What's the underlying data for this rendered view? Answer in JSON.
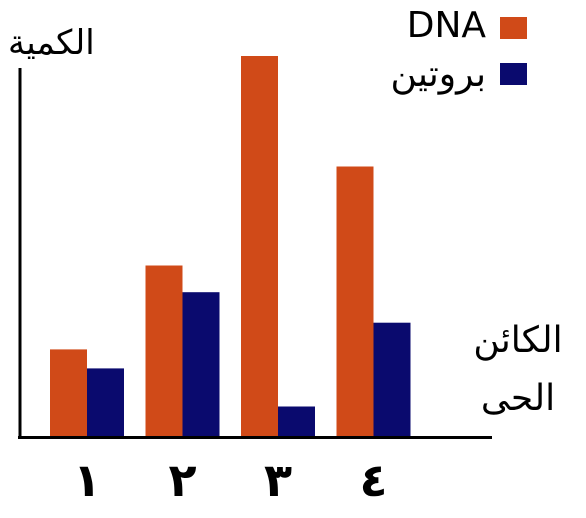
{
  "chart_data": {
    "type": "bar",
    "title": "",
    "ylabel": "الكمية",
    "xlabel_line1": "الكائن",
    "xlabel_line2": "الحى",
    "categories": [
      "١",
      "٢",
      "٣",
      "٤"
    ],
    "series": [
      {
        "name": "DNA",
        "color": "#D04A18",
        "values": [
          23,
          45,
          100,
          71
        ]
      },
      {
        "name": "بروتين",
        "color": "#0A0A6E",
        "values": [
          18,
          38,
          8,
          30
        ]
      }
    ],
    "ylim": [
      0,
      100
    ],
    "grid": false,
    "legend_position": "top-right",
    "axis_ticks": false
  }
}
